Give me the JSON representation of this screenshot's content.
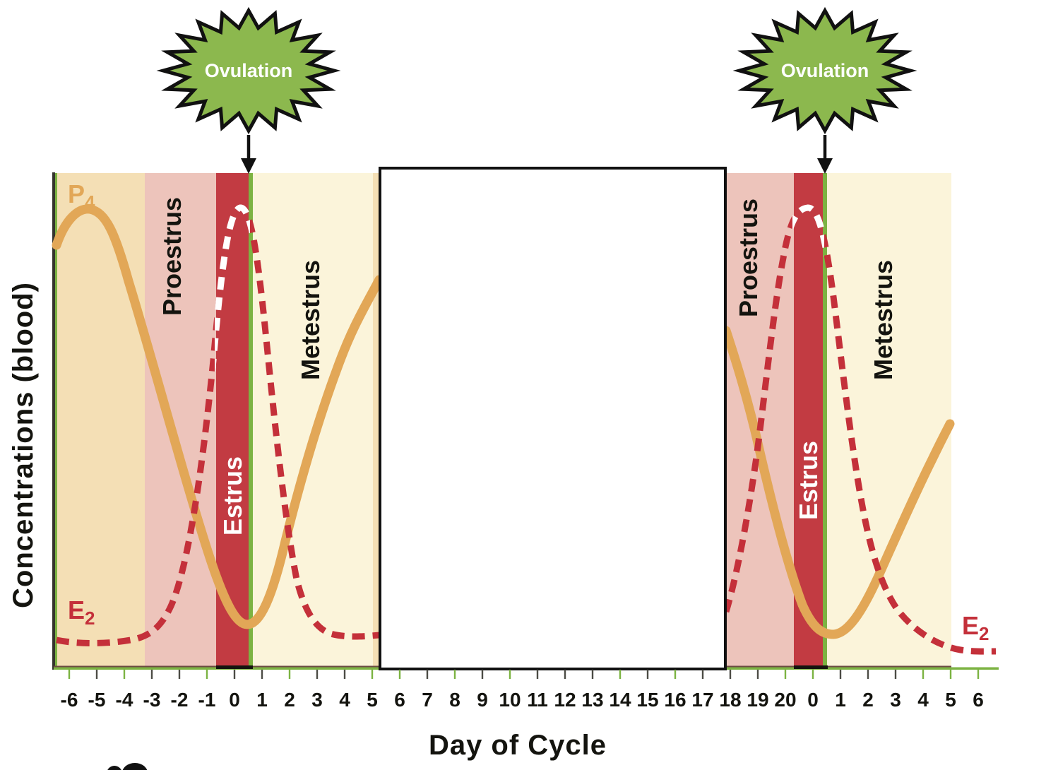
{
  "labels": {
    "ovulation": "Ovulation",
    "y_axis": "Concentrations (blood)",
    "x_axis": "Day of Cycle",
    "p4_main": "P",
    "p4_sub": "4",
    "e2_main": "E",
    "e2_sub": "2"
  },
  "phases": {
    "proestrus": "Proestrus",
    "estrus": "Estrus",
    "metestrus": "Metestrus"
  },
  "axis": {
    "ticks": [
      {
        "label": "-6",
        "c": "g"
      },
      {
        "label": "-5",
        "c": "d"
      },
      {
        "label": "-4",
        "c": "g"
      },
      {
        "label": "-3",
        "c": "d"
      },
      {
        "label": "-2",
        "c": "d"
      },
      {
        "label": "-1",
        "c": "g"
      },
      {
        "label": "0",
        "c": "d"
      },
      {
        "label": "1",
        "c": "d"
      },
      {
        "label": "2",
        "c": "g"
      },
      {
        "label": "3",
        "c": "d"
      },
      {
        "label": "4",
        "c": "d"
      },
      {
        "label": "5",
        "c": "g"
      },
      {
        "label": "6",
        "c": "g"
      },
      {
        "label": "7",
        "c": "d"
      },
      {
        "label": "8",
        "c": "g"
      },
      {
        "label": "9",
        "c": "d"
      },
      {
        "label": "10",
        "c": "g"
      },
      {
        "label": "11",
        "c": "d"
      },
      {
        "label": "12",
        "c": "d"
      },
      {
        "label": "13",
        "c": "d"
      },
      {
        "label": "14",
        "c": "g"
      },
      {
        "label": "15",
        "c": "d"
      },
      {
        "label": "16",
        "c": "g"
      },
      {
        "label": "17",
        "c": "d"
      },
      {
        "label": "18",
        "c": "d"
      },
      {
        "label": "19",
        "c": "d"
      },
      {
        "label": "20",
        "c": "g"
      },
      {
        "label": "0",
        "c": "g"
      },
      {
        "label": "1",
        "c": "d"
      },
      {
        "label": "2",
        "c": "d"
      },
      {
        "label": "3",
        "c": "d"
      },
      {
        "label": "4",
        "c": "g"
      },
      {
        "label": "5",
        "c": "g"
      },
      {
        "label": "6",
        "c": "g"
      }
    ]
  },
  "colors": {
    "star_green": "#8cb84e",
    "boundary_green": "#7cb342",
    "estrus_red": "#c23b42",
    "proestrus_pink": "#edc4bb",
    "diestrus_tan": "#f4dfb5",
    "metestrus_cream": "#fbf4da",
    "p4_orange": "#e2a757",
    "e2_red": "#c4303a",
    "axis_dark": "#4c4c45",
    "text_black": "#14140f"
  },
  "chart_data": {
    "type": "line",
    "title": "",
    "xlabel": "Day of Cycle",
    "ylabel": "Concentrations (blood)",
    "x_tick_labels": [
      "-6",
      "-5",
      "-4",
      "-3",
      "-2",
      "-1",
      "0",
      "1",
      "2",
      "3",
      "4",
      "5",
      "6",
      "7",
      "8",
      "9",
      "10",
      "11",
      "12",
      "13",
      "14",
      "15",
      "16",
      "17",
      "18",
      "19",
      "20",
      "0",
      "1",
      "2",
      "3",
      "4",
      "5",
      "6"
    ],
    "y_axis_scale": "relative concentration, no numeric ticks (values below normalized 0-1)",
    "series": [
      {
        "name": "P4 (progesterone)",
        "line_style": "solid",
        "color": "#e2a757",
        "x_days": [
          -6,
          -5.3,
          -4,
          -3,
          -2,
          -1,
          0,
          1,
          2,
          3,
          4,
          5
        ],
        "values": [
          0.87,
          0.93,
          0.79,
          0.63,
          0.4,
          0.23,
          0.09,
          0.11,
          0.28,
          0.49,
          0.64,
          0.74
        ]
      },
      {
        "name": "E2 (estradiol)",
        "line_style": "dashed",
        "color": "#c4303a",
        "x_days": [
          -6,
          -5,
          -4,
          -3,
          -2,
          -1,
          0,
          1,
          2,
          3,
          4,
          5
        ],
        "values": [
          0.05,
          0.05,
          0.05,
          0.08,
          0.16,
          0.54,
          0.93,
          0.7,
          0.22,
          0.08,
          0.07,
          0.06
        ]
      }
    ],
    "repeat_note": "The same hormone pattern is drawn twice; second cycle plotted over x-axis days 18, 19, 20, 0, 1, 2, 3, 4, 5, 6. E2 peak (white dashes) occurs in the Estrus band just before ovulation.",
    "hidden_region": {
      "days": "6-17",
      "note": "center of figure covered by a blank white box"
    },
    "annotations": [
      {
        "label": "Ovulation",
        "x_day": 0.5,
        "occurrence": "both cycles",
        "marker": "green starburst with downward arrow at Estrus/Metestrus boundary"
      }
    ],
    "phase_bands": [
      {
        "name": "",
        "note": "unlabeled tan (diestrus) band",
        "from_day": -6,
        "to_day": -3.4,
        "color": "#f4dfb5"
      },
      {
        "name": "Proestrus",
        "from_day": -3.4,
        "to_day": -0.7,
        "color": "#edc4bb"
      },
      {
        "name": "Estrus",
        "from_day": -0.7,
        "to_day": 0.5,
        "color": "#c23b42"
      },
      {
        "name": "Metestrus",
        "from_day": 0.5,
        "to_day": 5,
        "color": "#fbf4da"
      }
    ],
    "legend_position": "in-plot text labels (P4 top-left, E2 bottom-left and bottom-right)",
    "grid": false
  }
}
